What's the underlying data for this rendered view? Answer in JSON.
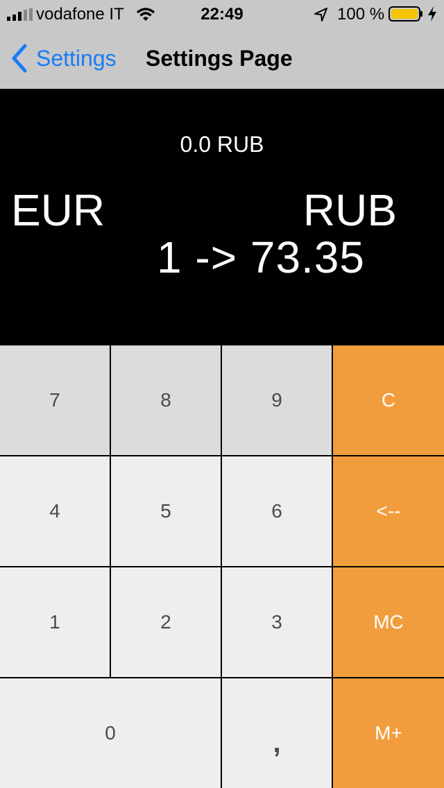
{
  "status_bar": {
    "carrier": "vodafone IT",
    "time": "22:49",
    "battery_percent": "100 %",
    "icons": [
      "signal-icon",
      "wifi-icon",
      "location-icon",
      "battery-icon",
      "charging-icon"
    ],
    "battery_color": "#f5c400"
  },
  "nav": {
    "back_label": "Settings",
    "title": "Settings Page",
    "accent_color": "#1a7cf5"
  },
  "display": {
    "memory": "0.0 RUB",
    "from_currency": "EUR",
    "to_currency": "RUB",
    "rate": "1 -> 73.35"
  },
  "keypad": {
    "keys": [
      "7",
      "8",
      "9",
      "C",
      "4",
      "5",
      "6",
      "<--",
      "1",
      "2",
      "3",
      "MC",
      "0",
      ",",
      "M+"
    ],
    "operator_color": "#f19d3d"
  }
}
